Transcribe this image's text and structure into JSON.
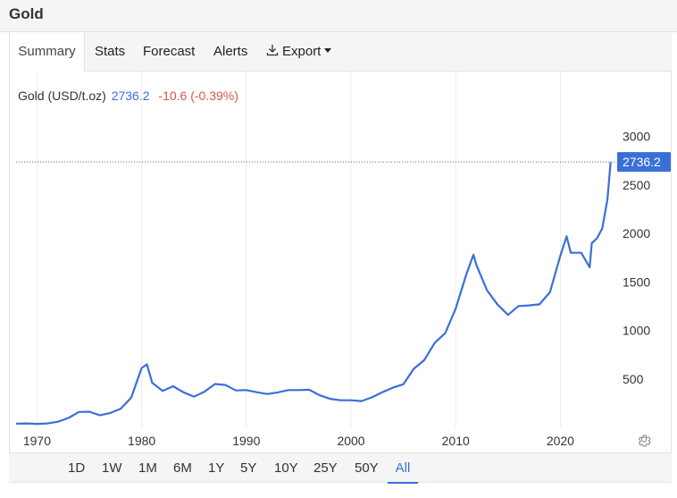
{
  "header": {
    "title": "Gold"
  },
  "tabs": [
    {
      "label": "Summary",
      "active": true
    },
    {
      "label": "Stats"
    },
    {
      "label": "Forecast"
    },
    {
      "label": "Alerts"
    },
    {
      "label": "Export",
      "icon": "download-icon"
    }
  ],
  "quote": {
    "name": "Gold (USD/t.oz)",
    "price": "2736.2",
    "change": "-10.6 (-0.39%)"
  },
  "colors": {
    "line": "#3a6fd8",
    "negative": "#d9534f",
    "accent": "#3a6fd8"
  },
  "ranges": [
    {
      "label": "1D"
    },
    {
      "label": "1W"
    },
    {
      "label": "1M"
    },
    {
      "label": "6M"
    },
    {
      "label": "1Y"
    },
    {
      "label": "5Y"
    },
    {
      "label": "10Y"
    },
    {
      "label": "25Y"
    },
    {
      "label": "50Y"
    },
    {
      "label": "All",
      "active": true
    }
  ],
  "settings_icon": "gear-icon",
  "chart_data": {
    "type": "line",
    "series": [
      {
        "x": [
          1968,
          1969,
          1970,
          1971,
          1972,
          1973,
          1974,
          1975,
          1976,
          1977,
          1978,
          1979,
          1980,
          1980.5,
          1981,
          1982,
          1983,
          1984,
          1985,
          1986,
          1987,
          1988,
          1989,
          1990,
          1991,
          1992,
          1993,
          1994,
          1995,
          1996,
          1997,
          1998,
          1999,
          2000,
          2001,
          2002,
          2003,
          2004,
          2005,
          2006,
          2007,
          2008,
          2009,
          2010,
          2011,
          2011.7,
          2012,
          2013,
          2014,
          2015,
          2016,
          2017,
          2018,
          2019,
          2020,
          2020.6,
          2021,
          2022,
          2022.8,
          2023,
          2023.5,
          2024,
          2024.5,
          2024.8
        ],
        "y": [
          39,
          41,
          36,
          41,
          58,
          97,
          159,
          161,
          125,
          148,
          193,
          307,
          612,
          650,
          460,
          376,
          424,
          361,
          317,
          368,
          447,
          437,
          381,
          384,
          362,
          344,
          360,
          384,
          384,
          388,
          331,
          294,
          279,
          279,
          271,
          310,
          363,
          409,
          444,
          604,
          695,
          872,
          972,
          1224,
          1571,
          1780,
          1669,
          1411,
          1266,
          1160,
          1251,
          1257,
          1268,
          1393,
          1770,
          1970,
          1800,
          1800,
          1650,
          1900,
          1950,
          2050,
          2350,
          2736.2
        ]
      }
    ],
    "xlim": [
      1968,
      2025
    ],
    "ylim": [
      0,
      3300
    ],
    "yticks": [
      500,
      1000,
      1500,
      2000,
      2500,
      3000
    ],
    "xticks": [
      1970,
      1980,
      1990,
      2000,
      2010,
      2020
    ],
    "last_value": 2736.2,
    "grid": "x-vertical"
  }
}
